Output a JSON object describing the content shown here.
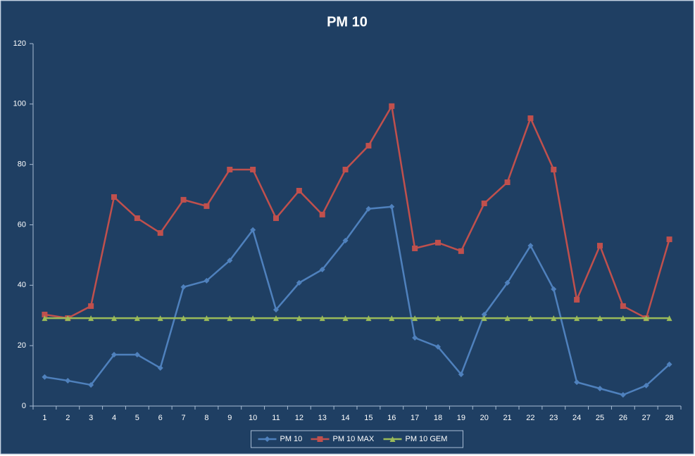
{
  "chart_data": {
    "type": "line",
    "title": "PM 10",
    "categories": [
      "1",
      "2",
      "3",
      "4",
      "5",
      "6",
      "7",
      "8",
      "9",
      "10",
      "11",
      "12",
      "13",
      "14",
      "15",
      "16",
      "17",
      "18",
      "19",
      "20",
      "21",
      "22",
      "23",
      "24",
      "25",
      "26",
      "27",
      "28"
    ],
    "series": [
      {
        "name": "PM 10",
        "color": "#4f81bd",
        "marker": "diamond",
        "values": [
          9.6,
          8.4,
          7.0,
          17.0,
          17.0,
          12.6,
          39.4,
          41.5,
          48.2,
          58.3,
          31.9,
          40.8,
          45.2,
          54.8,
          65.3,
          66.0,
          22.6,
          19.6,
          10.5,
          30.3,
          40.8,
          53.1,
          38.7,
          7.9,
          5.8,
          3.7,
          6.8,
          13.8
        ]
      },
      {
        "name": "PM 10 MAX",
        "color": "#c0504d",
        "marker": "square",
        "values": [
          30.3,
          29.1,
          33.1,
          69.2,
          62.2,
          57.3,
          68.3,
          66.2,
          78.3,
          78.3,
          62.2,
          71.3,
          63.4,
          78.3,
          86.2,
          99.3,
          52.2,
          54.1,
          51.3,
          67.1,
          74.1,
          95.3,
          78.3,
          35.2,
          53.1,
          33.1,
          29.1,
          55.2
        ]
      },
      {
        "name": "PM 10 GEM",
        "color": "#9bbb59",
        "marker": "triangle",
        "values": [
          29.1,
          29.1,
          29.1,
          29.1,
          29.1,
          29.1,
          29.1,
          29.1,
          29.1,
          29.1,
          29.1,
          29.1,
          29.1,
          29.1,
          29.1,
          29.1,
          29.1,
          29.1,
          29.1,
          29.1,
          29.1,
          29.1,
          29.1,
          29.1,
          29.1,
          29.1,
          29.1,
          29.1
        ]
      }
    ],
    "ylim": [
      0,
      120
    ],
    "yticks": [
      0,
      20,
      40,
      60,
      80,
      100,
      120
    ],
    "grid": false,
    "legend": "bottom"
  }
}
